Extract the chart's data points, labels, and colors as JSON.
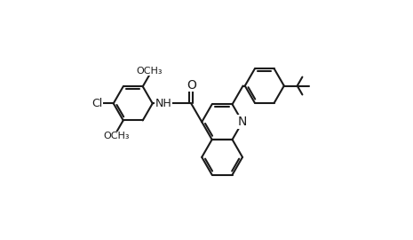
{
  "bg_color": "#ffffff",
  "line_color": "#1a1a1a",
  "line_width": 1.5,
  "font_size": 8.5,
  "figsize": [
    4.65,
    2.7
  ],
  "dpi": 100,
  "xlim": [
    -1.0,
    9.5
  ],
  "ylim": [
    -0.5,
    5.5
  ]
}
